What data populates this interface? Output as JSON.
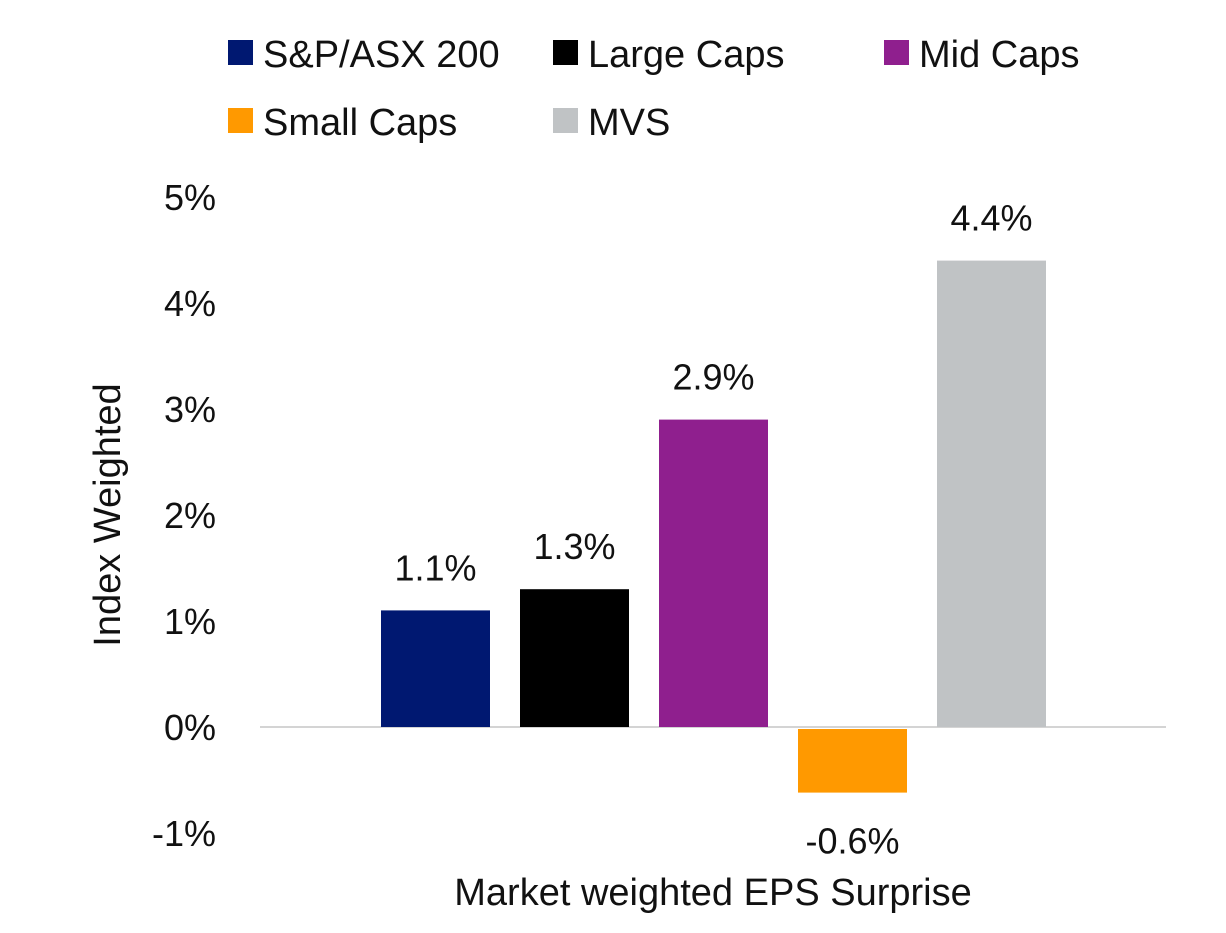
{
  "chart_data": {
    "type": "bar",
    "title": "",
    "xlabel": "Market weighted EPS Surprise",
    "ylabel": "Index Weighted",
    "ylim": [
      -1,
      5
    ],
    "yticks": [
      -1,
      0,
      1,
      2,
      3,
      4,
      5
    ],
    "ytick_labels": [
      "-1%",
      "0%",
      "1%",
      "2%",
      "3%",
      "4%",
      "5%"
    ],
    "grid": false,
    "legend_position": "top",
    "categories": [
      "S&P/ASX 200",
      "Large Caps",
      "Mid Caps",
      "Small Caps",
      "MVS"
    ],
    "series": [
      {
        "name": "S&P/ASX 200",
        "value": 1.1,
        "label": "1.1%",
        "color": "#001871"
      },
      {
        "name": "Large Caps",
        "value": 1.3,
        "label": "1.3%",
        "color": "#000000"
      },
      {
        "name": "Mid Caps",
        "value": 2.9,
        "label": "2.9%",
        "color": "#8F1F8E"
      },
      {
        "name": "Small Caps",
        "value": -0.6,
        "label": "-0.6%",
        "color": "#FF9900"
      },
      {
        "name": "MVS",
        "value": 4.4,
        "label": "4.4%",
        "color": "#C0C3C5"
      }
    ]
  }
}
